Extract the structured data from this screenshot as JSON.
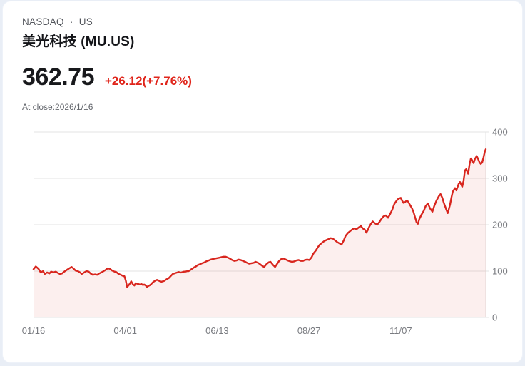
{
  "header": {
    "exchange_line": "NASDAQ · US",
    "title": "美光科技 (MU.US)",
    "price": "362.75",
    "change": "+26.12(+7.76%)",
    "as_of": "At close:2026/1/16"
  },
  "colors": {
    "accent_red": "#e0251b",
    "line_red": "#d8261e",
    "area_fill": "rgba(216,38,30,0.075)",
    "grid": "#e3e3e3",
    "axis_text": "#797b80",
    "page_bg": "#e9eef6",
    "card_bg": "#ffffff"
  },
  "chart_data": {
    "type": "area",
    "title": "MU.US price, 1 year",
    "xlabel": "",
    "ylabel": "",
    "ylim": [
      0,
      400
    ],
    "grid": "horizontal",
    "legend": "none",
    "y_ticks": [
      0,
      100,
      200,
      300,
      400
    ],
    "x_ticks": [
      "01/16",
      "04/01",
      "06/13",
      "08/27",
      "11/07"
    ],
    "x_tick_pos": [
      0,
      20.3,
      40.6,
      60.9,
      81.2
    ],
    "series": [
      {
        "name": "MU.US",
        "points": [
          [
            0,
            104
          ],
          [
            0.5,
            110
          ],
          [
            1.1,
            105
          ],
          [
            1.6,
            97
          ],
          [
            2.1,
            100
          ],
          [
            2.5,
            94
          ],
          [
            3,
            97
          ],
          [
            3.5,
            95
          ],
          [
            3.9,
            99
          ],
          [
            4.4,
            97
          ],
          [
            4.9,
            99
          ],
          [
            5.4,
            96
          ],
          [
            5.8,
            94
          ],
          [
            6.3,
            95
          ],
          [
            6.8,
            99
          ],
          [
            7.4,
            103
          ],
          [
            7.9,
            106
          ],
          [
            8.4,
            109
          ],
          [
            8.8,
            106
          ],
          [
            9.3,
            101
          ],
          [
            9.8,
            100
          ],
          [
            10.3,
            97
          ],
          [
            10.7,
            94
          ],
          [
            11.2,
            97
          ],
          [
            11.7,
            100
          ],
          [
            12.2,
            99
          ],
          [
            12.6,
            95
          ],
          [
            13.1,
            92
          ],
          [
            13.6,
            93
          ],
          [
            14.1,
            92
          ],
          [
            14.5,
            95
          ],
          [
            15,
            97
          ],
          [
            15.5,
            100
          ],
          [
            16,
            103
          ],
          [
            16.4,
            106
          ],
          [
            16.9,
            105
          ],
          [
            17.4,
            101
          ],
          [
            17.9,
            99
          ],
          [
            18.3,
            98
          ],
          [
            18.8,
            94
          ],
          [
            19.3,
            92
          ],
          [
            19.7,
            90
          ],
          [
            20.1,
            89
          ],
          [
            20.4,
            80
          ],
          [
            20.7,
            66
          ],
          [
            21,
            69
          ],
          [
            21.3,
            73
          ],
          [
            21.6,
            78
          ],
          [
            22,
            71
          ],
          [
            22.3,
            69
          ],
          [
            22.6,
            74
          ],
          [
            22.9,
            73
          ],
          [
            23.2,
            72
          ],
          [
            23.5,
            71
          ],
          [
            23.9,
            72
          ],
          [
            24.2,
            70
          ],
          [
            24.5,
            71
          ],
          [
            24.8,
            69
          ],
          [
            25.1,
            66
          ],
          [
            25.4,
            68
          ],
          [
            25.8,
            70
          ],
          [
            26.1,
            73
          ],
          [
            26.4,
            76
          ],
          [
            26.7,
            78
          ],
          [
            27,
            80
          ],
          [
            27.3,
            81
          ],
          [
            27.6,
            80
          ],
          [
            28,
            78
          ],
          [
            28.3,
            77
          ],
          [
            28.6,
            78
          ],
          [
            28.9,
            79
          ],
          [
            29.2,
            81
          ],
          [
            29.5,
            83
          ],
          [
            29.9,
            85
          ],
          [
            30.2,
            88
          ],
          [
            30.5,
            91
          ],
          [
            30.8,
            94
          ],
          [
            31.1,
            95
          ],
          [
            31.4,
            96
          ],
          [
            31.8,
            97
          ],
          [
            32.1,
            98
          ],
          [
            32.4,
            97
          ],
          [
            32.7,
            97
          ],
          [
            33,
            98
          ],
          [
            33.3,
            99
          ],
          [
            33.6,
            99
          ],
          [
            34,
            100
          ],
          [
            34.3,
            100
          ],
          [
            34.6,
            102
          ],
          [
            34.9,
            104
          ],
          [
            35.2,
            106
          ],
          [
            35.5,
            108
          ],
          [
            35.9,
            110
          ],
          [
            36.3,
            113
          ],
          [
            36.8,
            115
          ],
          [
            37.3,
            117
          ],
          [
            37.8,
            119
          ],
          [
            38.2,
            121
          ],
          [
            38.7,
            123
          ],
          [
            39.2,
            125
          ],
          [
            39.7,
            126
          ],
          [
            40.1,
            127
          ],
          [
            40.6,
            128
          ],
          [
            41.1,
            129
          ],
          [
            41.5,
            130
          ],
          [
            42,
            131
          ],
          [
            42.5,
            131
          ],
          [
            43,
            129
          ],
          [
            43.4,
            127
          ],
          [
            43.9,
            124
          ],
          [
            44.4,
            122
          ],
          [
            44.9,
            123
          ],
          [
            45.3,
            125
          ],
          [
            45.8,
            124
          ],
          [
            46.3,
            122
          ],
          [
            46.8,
            120
          ],
          [
            47.2,
            118
          ],
          [
            47.7,
            116
          ],
          [
            48.2,
            117
          ],
          [
            48.7,
            118
          ],
          [
            49.1,
            120
          ],
          [
            49.6,
            118
          ],
          [
            50.1,
            115
          ],
          [
            50.6,
            111
          ],
          [
            51,
            109
          ],
          [
            51.5,
            115
          ],
          [
            52,
            119
          ],
          [
            52.4,
            120
          ],
          [
            52.9,
            114
          ],
          [
            53.4,
            109
          ],
          [
            53.9,
            116
          ],
          [
            54.3,
            122
          ],
          [
            54.8,
            126
          ],
          [
            55.3,
            127
          ],
          [
            55.8,
            125
          ],
          [
            56.2,
            123
          ],
          [
            56.7,
            121
          ],
          [
            57.2,
            120
          ],
          [
            57.7,
            121
          ],
          [
            58.1,
            123
          ],
          [
            58.6,
            124
          ],
          [
            59.1,
            122
          ],
          [
            59.6,
            122
          ],
          [
            60,
            124
          ],
          [
            60.5,
            125
          ],
          [
            61,
            124
          ],
          [
            61.5,
            130
          ],
          [
            61.9,
            138
          ],
          [
            62.4,
            144
          ],
          [
            62.9,
            152
          ],
          [
            63.3,
            157
          ],
          [
            63.8,
            161
          ],
          [
            64.3,
            165
          ],
          [
            64.8,
            167
          ],
          [
            65.2,
            169
          ],
          [
            65.7,
            171
          ],
          [
            66.2,
            170
          ],
          [
            66.7,
            166
          ],
          [
            67.1,
            163
          ],
          [
            67.6,
            160
          ],
          [
            68.1,
            157
          ],
          [
            68.6,
            166
          ],
          [
            69,
            176
          ],
          [
            69.5,
            182
          ],
          [
            70,
            186
          ],
          [
            70.5,
            190
          ],
          [
            70.9,
            192
          ],
          [
            71.4,
            190
          ],
          [
            71.9,
            194
          ],
          [
            72.4,
            197
          ],
          [
            72.8,
            192
          ],
          [
            73.3,
            189
          ],
          [
            73.6,
            183
          ],
          [
            73.9,
            188
          ],
          [
            74.2,
            195
          ],
          [
            74.6,
            202
          ],
          [
            75,
            207
          ],
          [
            75.5,
            203
          ],
          [
            76,
            200
          ],
          [
            76.5,
            206
          ],
          [
            76.9,
            212
          ],
          [
            77.4,
            218
          ],
          [
            77.9,
            220
          ],
          [
            78.4,
            215
          ],
          [
            78.8,
            222
          ],
          [
            79.3,
            232
          ],
          [
            79.8,
            245
          ],
          [
            80.3,
            252
          ],
          [
            80.7,
            256
          ],
          [
            81.2,
            258
          ],
          [
            81.5,
            252
          ],
          [
            81.8,
            247
          ],
          [
            82.1,
            248
          ],
          [
            82.5,
            252
          ],
          [
            82.8,
            250
          ],
          [
            83.1,
            245
          ],
          [
            83.4,
            240
          ],
          [
            83.7,
            235
          ],
          [
            84,
            228
          ],
          [
            84.4,
            215
          ],
          [
            84.7,
            205
          ],
          [
            85,
            202
          ],
          [
            85.3,
            212
          ],
          [
            85.8,
            222
          ],
          [
            86.3,
            230
          ],
          [
            86.7,
            240
          ],
          [
            87.2,
            246
          ],
          [
            87.7,
            235
          ],
          [
            88.2,
            228
          ],
          [
            88.6,
            240
          ],
          [
            89.1,
            252
          ],
          [
            89.6,
            261
          ],
          [
            90,
            266
          ],
          [
            90.4,
            258
          ],
          [
            90.7,
            248
          ],
          [
            91,
            240
          ],
          [
            91.3,
            232
          ],
          [
            91.6,
            225
          ],
          [
            92.1,
            243
          ],
          [
            92.4,
            258
          ],
          [
            92.7,
            271
          ],
          [
            93.2,
            279
          ],
          [
            93.5,
            274
          ],
          [
            94,
            288
          ],
          [
            94.3,
            292
          ],
          [
            94.8,
            282
          ],
          [
            95.1,
            295
          ],
          [
            95.4,
            317
          ],
          [
            95.7,
            320
          ],
          [
            96.1,
            310
          ],
          [
            96.4,
            330
          ],
          [
            96.7,
            343
          ],
          [
            97,
            339
          ],
          [
            97.3,
            333
          ],
          [
            97.6,
            342
          ],
          [
            98,
            348
          ],
          [
            98.3,
            342
          ],
          [
            98.6,
            335
          ],
          [
            98.9,
            331
          ],
          [
            99.2,
            334
          ],
          [
            99.5,
            345
          ],
          [
            99.8,
            358
          ],
          [
            100,
            362.75
          ]
        ]
      }
    ]
  }
}
